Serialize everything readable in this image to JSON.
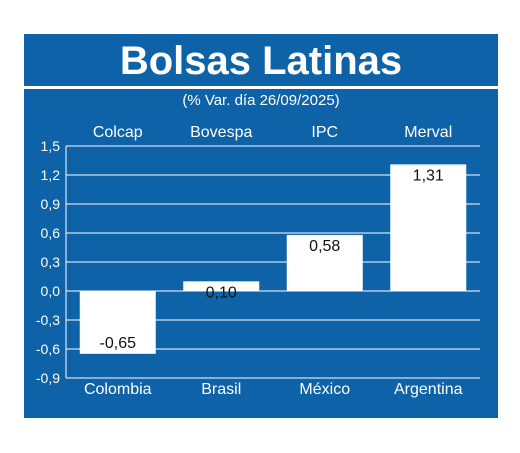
{
  "colors": {
    "background": "#0d62a8",
    "bar": "#ffffff",
    "label_text": "#ffffff",
    "value_text": "#111111"
  },
  "chart_data": {
    "type": "bar",
    "title": "Bolsas Latinas",
    "subtitle": "(% Var. día 26/09/2025)",
    "top_labels": [
      "Colcap",
      "Bovespa",
      "IPC",
      "Merval"
    ],
    "categories": [
      "Colombia",
      "Brasil",
      "México",
      "Argentina"
    ],
    "values": [
      -0.65,
      0.1,
      0.58,
      1.31
    ],
    "value_labels": [
      "-0,65",
      "0,10",
      "0,58",
      "1,31"
    ],
    "ylim": [
      -0.9,
      1.5
    ],
    "yticks": [
      1.5,
      1.2,
      0.9,
      0.6,
      0.3,
      0.0,
      -0.3,
      -0.6,
      -0.9
    ],
    "ytick_labels": [
      "1,5",
      "1,2",
      "0,9",
      "0,6",
      "0,3",
      "0,0",
      "-0,3",
      "-0,6",
      "-0,9"
    ],
    "grid": true
  }
}
